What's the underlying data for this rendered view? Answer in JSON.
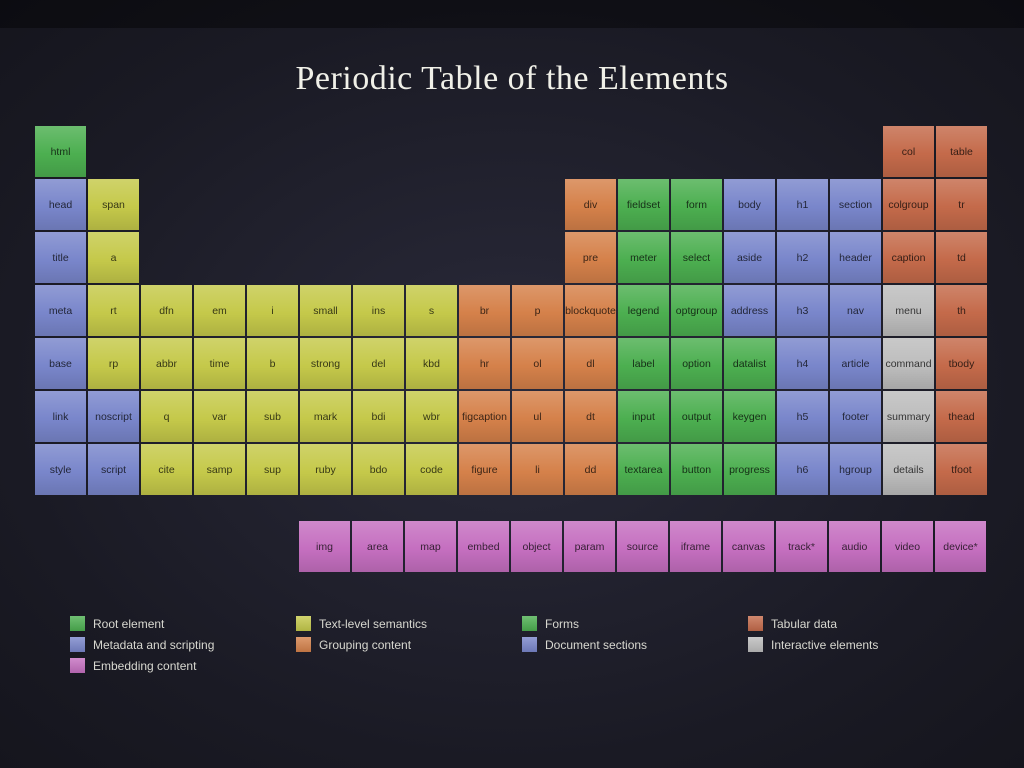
{
  "title": "Periodic Table of the Elements",
  "colors": {
    "root": "#4caf50",
    "metadata": "#7986cb",
    "text": "#c5c94a",
    "grouping": "#d5814a",
    "forms": "#4caf50",
    "sections": "#7986cb",
    "interactive": "#bdbdbd",
    "tabular": "#c46a4a",
    "embedding": "#c56fc0"
  },
  "legend": [
    {
      "label": "Root element",
      "colorKey": "root"
    },
    {
      "label": "Text-level semantics",
      "colorKey": "text"
    },
    {
      "label": "Forms",
      "colorKey": "forms"
    },
    {
      "label": "Tabular data",
      "colorKey": "tabular"
    },
    {
      "label": "Metadata and scripting",
      "colorKey": "metadata"
    },
    {
      "label": "Grouping content",
      "colorKey": "grouping"
    },
    {
      "label": "Document sections",
      "colorKey": "sections"
    },
    {
      "label": "Interactive elements",
      "colorKey": "interactive"
    },
    {
      "label": "Embedding content",
      "colorKey": "embedding"
    }
  ],
  "mainGrid": {
    "cols": 18,
    "rows": 7,
    "cells": [
      {
        "r": 1,
        "c": 1,
        "label": "html",
        "cat": "root"
      },
      {
        "r": 1,
        "c": 17,
        "label": "col",
        "cat": "tabular"
      },
      {
        "r": 1,
        "c": 18,
        "label": "table",
        "cat": "tabular"
      },
      {
        "r": 2,
        "c": 1,
        "label": "head",
        "cat": "metadata"
      },
      {
        "r": 2,
        "c": 2,
        "label": "span",
        "cat": "text"
      },
      {
        "r": 2,
        "c": 11,
        "label": "div",
        "cat": "grouping"
      },
      {
        "r": 2,
        "c": 12,
        "label": "fieldset",
        "cat": "forms"
      },
      {
        "r": 2,
        "c": 13,
        "label": "form",
        "cat": "forms"
      },
      {
        "r": 2,
        "c": 14,
        "label": "body",
        "cat": "sections"
      },
      {
        "r": 2,
        "c": 15,
        "label": "h1",
        "cat": "sections"
      },
      {
        "r": 2,
        "c": 16,
        "label": "section",
        "cat": "sections"
      },
      {
        "r": 2,
        "c": 17,
        "label": "colgroup",
        "cat": "tabular"
      },
      {
        "r": 2,
        "c": 18,
        "label": "tr",
        "cat": "tabular"
      },
      {
        "r": 3,
        "c": 1,
        "label": "title",
        "cat": "metadata"
      },
      {
        "r": 3,
        "c": 2,
        "label": "a",
        "cat": "text"
      },
      {
        "r": 3,
        "c": 11,
        "label": "pre",
        "cat": "grouping"
      },
      {
        "r": 3,
        "c": 12,
        "label": "meter",
        "cat": "forms"
      },
      {
        "r": 3,
        "c": 13,
        "label": "select",
        "cat": "forms"
      },
      {
        "r": 3,
        "c": 14,
        "label": "aside",
        "cat": "sections"
      },
      {
        "r": 3,
        "c": 15,
        "label": "h2",
        "cat": "sections"
      },
      {
        "r": 3,
        "c": 16,
        "label": "header",
        "cat": "sections"
      },
      {
        "r": 3,
        "c": 17,
        "label": "caption",
        "cat": "tabular"
      },
      {
        "r": 3,
        "c": 18,
        "label": "td",
        "cat": "tabular"
      },
      {
        "r": 4,
        "c": 1,
        "label": "meta",
        "cat": "metadata"
      },
      {
        "r": 4,
        "c": 2,
        "label": "rt",
        "cat": "text"
      },
      {
        "r": 4,
        "c": 3,
        "label": "dfn",
        "cat": "text"
      },
      {
        "r": 4,
        "c": 4,
        "label": "em",
        "cat": "text"
      },
      {
        "r": 4,
        "c": 5,
        "label": "i",
        "cat": "text"
      },
      {
        "r": 4,
        "c": 6,
        "label": "small",
        "cat": "text"
      },
      {
        "r": 4,
        "c": 7,
        "label": "ins",
        "cat": "text"
      },
      {
        "r": 4,
        "c": 8,
        "label": "s",
        "cat": "text"
      },
      {
        "r": 4,
        "c": 9,
        "label": "br",
        "cat": "grouping"
      },
      {
        "r": 4,
        "c": 10,
        "label": "p",
        "cat": "grouping"
      },
      {
        "r": 4,
        "c": 11,
        "label": "blockquote",
        "cat": "grouping"
      },
      {
        "r": 4,
        "c": 12,
        "label": "legend",
        "cat": "forms"
      },
      {
        "r": 4,
        "c": 13,
        "label": "optgroup",
        "cat": "forms"
      },
      {
        "r": 4,
        "c": 14,
        "label": "address",
        "cat": "sections"
      },
      {
        "r": 4,
        "c": 15,
        "label": "h3",
        "cat": "sections"
      },
      {
        "r": 4,
        "c": 16,
        "label": "nav",
        "cat": "sections"
      },
      {
        "r": 4,
        "c": 17,
        "label": "menu",
        "cat": "interactive"
      },
      {
        "r": 4,
        "c": 18,
        "label": "th",
        "cat": "tabular"
      },
      {
        "r": 5,
        "c": 1,
        "label": "base",
        "cat": "metadata"
      },
      {
        "r": 5,
        "c": 2,
        "label": "rp",
        "cat": "text"
      },
      {
        "r": 5,
        "c": 3,
        "label": "abbr",
        "cat": "text"
      },
      {
        "r": 5,
        "c": 4,
        "label": "time",
        "cat": "text"
      },
      {
        "r": 5,
        "c": 5,
        "label": "b",
        "cat": "text"
      },
      {
        "r": 5,
        "c": 6,
        "label": "strong",
        "cat": "text"
      },
      {
        "r": 5,
        "c": 7,
        "label": "del",
        "cat": "text"
      },
      {
        "r": 5,
        "c": 8,
        "label": "kbd",
        "cat": "text"
      },
      {
        "r": 5,
        "c": 9,
        "label": "hr",
        "cat": "grouping"
      },
      {
        "r": 5,
        "c": 10,
        "label": "ol",
        "cat": "grouping"
      },
      {
        "r": 5,
        "c": 11,
        "label": "dl",
        "cat": "grouping"
      },
      {
        "r": 5,
        "c": 12,
        "label": "label",
        "cat": "forms"
      },
      {
        "r": 5,
        "c": 13,
        "label": "option",
        "cat": "forms"
      },
      {
        "r": 5,
        "c": 14,
        "label": "datalist",
        "cat": "forms"
      },
      {
        "r": 5,
        "c": 15,
        "label": "h4",
        "cat": "sections"
      },
      {
        "r": 5,
        "c": 16,
        "label": "article",
        "cat": "sections"
      },
      {
        "r": 5,
        "c": 17,
        "label": "command",
        "cat": "interactive"
      },
      {
        "r": 5,
        "c": 18,
        "label": "tbody",
        "cat": "tabular"
      },
      {
        "r": 6,
        "c": 1,
        "label": "link",
        "cat": "metadata"
      },
      {
        "r": 6,
        "c": 2,
        "label": "noscript",
        "cat": "metadata"
      },
      {
        "r": 6,
        "c": 3,
        "label": "q",
        "cat": "text"
      },
      {
        "r": 6,
        "c": 4,
        "label": "var",
        "cat": "text"
      },
      {
        "r": 6,
        "c": 5,
        "label": "sub",
        "cat": "text"
      },
      {
        "r": 6,
        "c": 6,
        "label": "mark",
        "cat": "text"
      },
      {
        "r": 6,
        "c": 7,
        "label": "bdi",
        "cat": "text"
      },
      {
        "r": 6,
        "c": 8,
        "label": "wbr",
        "cat": "text"
      },
      {
        "r": 6,
        "c": 9,
        "label": "figcaption",
        "cat": "grouping"
      },
      {
        "r": 6,
        "c": 10,
        "label": "ul",
        "cat": "grouping"
      },
      {
        "r": 6,
        "c": 11,
        "label": "dt",
        "cat": "grouping"
      },
      {
        "r": 6,
        "c": 12,
        "label": "input",
        "cat": "forms"
      },
      {
        "r": 6,
        "c": 13,
        "label": "output",
        "cat": "forms"
      },
      {
        "r": 6,
        "c": 14,
        "label": "keygen",
        "cat": "forms"
      },
      {
        "r": 6,
        "c": 15,
        "label": "h5",
        "cat": "sections"
      },
      {
        "r": 6,
        "c": 16,
        "label": "footer",
        "cat": "sections"
      },
      {
        "r": 6,
        "c": 17,
        "label": "summary",
        "cat": "interactive"
      },
      {
        "r": 6,
        "c": 18,
        "label": "thead",
        "cat": "tabular"
      },
      {
        "r": 7,
        "c": 1,
        "label": "style",
        "cat": "metadata"
      },
      {
        "r": 7,
        "c": 2,
        "label": "script",
        "cat": "metadata"
      },
      {
        "r": 7,
        "c": 3,
        "label": "cite",
        "cat": "text"
      },
      {
        "r": 7,
        "c": 4,
        "label": "samp",
        "cat": "text"
      },
      {
        "r": 7,
        "c": 5,
        "label": "sup",
        "cat": "text"
      },
      {
        "r": 7,
        "c": 6,
        "label": "ruby",
        "cat": "text"
      },
      {
        "r": 7,
        "c": 7,
        "label": "bdo",
        "cat": "text"
      },
      {
        "r": 7,
        "c": 8,
        "label": "code",
        "cat": "text"
      },
      {
        "r": 7,
        "c": 9,
        "label": "figure",
        "cat": "grouping"
      },
      {
        "r": 7,
        "c": 10,
        "label": "li",
        "cat": "grouping"
      },
      {
        "r": 7,
        "c": 11,
        "label": "dd",
        "cat": "grouping"
      },
      {
        "r": 7,
        "c": 12,
        "label": "textarea",
        "cat": "forms"
      },
      {
        "r": 7,
        "c": 13,
        "label": "button",
        "cat": "forms"
      },
      {
        "r": 7,
        "c": 14,
        "label": "progress",
        "cat": "forms"
      },
      {
        "r": 7,
        "c": 15,
        "label": "h6",
        "cat": "sections"
      },
      {
        "r": 7,
        "c": 16,
        "label": "hgroup",
        "cat": "sections"
      },
      {
        "r": 7,
        "c": 17,
        "label": "details",
        "cat": "interactive"
      },
      {
        "r": 7,
        "c": 18,
        "label": "tfoot",
        "cat": "tabular"
      }
    ]
  },
  "bottomRow": [
    {
      "label": "img",
      "cat": "embedding"
    },
    {
      "label": "area",
      "cat": "embedding"
    },
    {
      "label": "map",
      "cat": "embedding"
    },
    {
      "label": "embed",
      "cat": "embedding"
    },
    {
      "label": "object",
      "cat": "embedding"
    },
    {
      "label": "param",
      "cat": "embedding"
    },
    {
      "label": "source",
      "cat": "embedding"
    },
    {
      "label": "iframe",
      "cat": "embedding"
    },
    {
      "label": "canvas",
      "cat": "embedding"
    },
    {
      "label": "track*",
      "cat": "embedding"
    },
    {
      "label": "audio",
      "cat": "embedding"
    },
    {
      "label": "video",
      "cat": "embedding"
    },
    {
      "label": "device*",
      "cat": "embedding"
    }
  ]
}
